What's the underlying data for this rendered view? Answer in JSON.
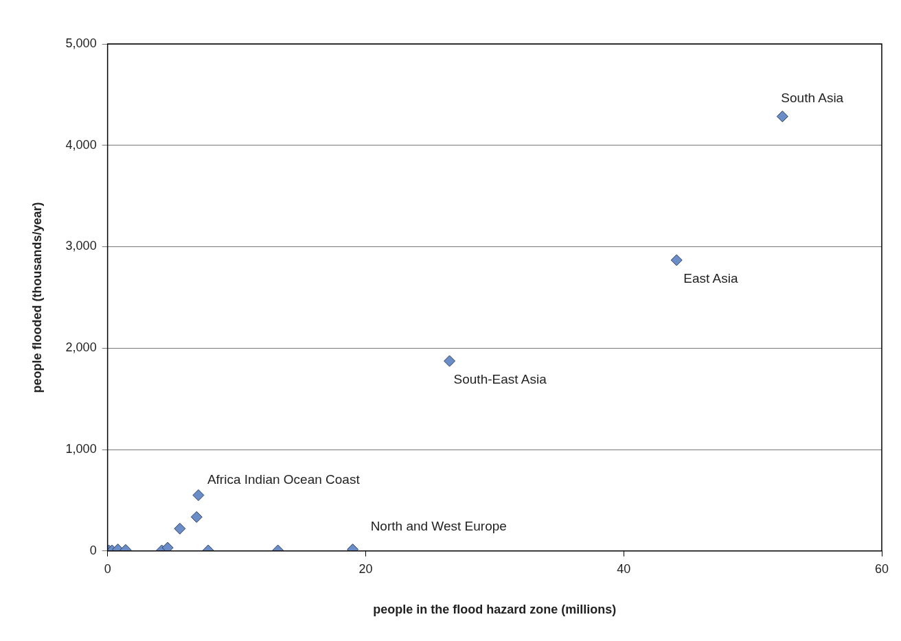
{
  "chart_data": {
    "type": "scatter",
    "xlabel": "people in the flood hazard zone (millions)",
    "ylabel": "people flooded (thousands/year)",
    "x": [
      0.1,
      0.35,
      0.8,
      1.4,
      4.2,
      4.66,
      5.6,
      6.9,
      7.04,
      7.8,
      13.2,
      19.0,
      26.5,
      44.1,
      52.3
    ],
    "values": [
      5,
      5,
      15,
      10,
      5,
      32,
      220,
      335,
      550,
      5,
      5,
      15,
      1873,
      2868,
      4285
    ],
    "color": "#6a8cc7",
    "marker": "diamond",
    "grid": "y",
    "legend": false,
    "xlim": [
      0,
      60
    ],
    "xticks": [
      0,
      20,
      40,
      60
    ],
    "ylim": [
      0,
      5000
    ],
    "yticks": [
      0,
      {
        "value": 1000,
        "label": "1,000"
      },
      {
        "value": 2000,
        "label": "2,000"
      },
      {
        "value": 3000,
        "label": "3,000"
      },
      {
        "value": 4000,
        "label": "4,000"
      },
      {
        "value": 5000,
        "label": "5,000"
      }
    ],
    "annotations": [
      {
        "text": "South Asia",
        "x": 52.3,
        "y": 4285
      },
      {
        "text": "East Asia",
        "x": 44.1,
        "y": 2868
      },
      {
        "text": "South-East Asia",
        "x": 26.5,
        "y": 1873
      },
      {
        "text": "Africa Indian Ocean Coast",
        "x": 7.04,
        "y": 550
      },
      {
        "text": "North and West Europe",
        "x": 19.0,
        "y": 15
      }
    ]
  }
}
